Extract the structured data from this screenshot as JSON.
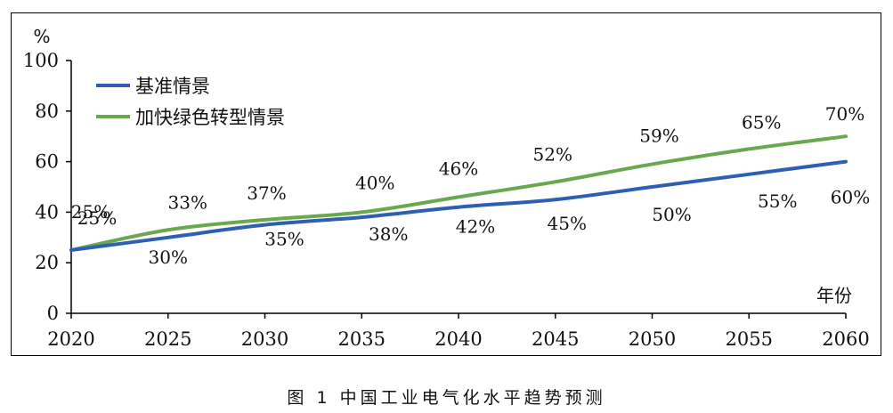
{
  "chart_data": {
    "type": "line",
    "x": [
      2020,
      2025,
      2030,
      2035,
      2040,
      2045,
      2050,
      2055,
      2060
    ],
    "series": [
      {
        "name": "基准情景",
        "color": "#2f5fb3",
        "values": [
          25,
          30,
          35,
          38,
          42,
          45,
          50,
          55,
          60
        ]
      },
      {
        "name": "加快绿色转型情景",
        "color": "#6aa84f",
        "values": [
          25,
          33,
          37,
          40,
          46,
          52,
          59,
          65,
          70
        ]
      }
    ],
    "data_labels": [
      [
        "25%",
        "30%",
        "35%",
        "38%",
        "42%",
        "45%",
        "50%",
        "55%",
        "60%"
      ],
      [
        "25%",
        "33%",
        "37%",
        "40%",
        "46%",
        "52%",
        "59%",
        "65%",
        "70%"
      ]
    ],
    "ylabel": "%",
    "xlabel": "年份",
    "ylim": [
      0,
      100
    ],
    "yticks": [
      0,
      20,
      40,
      60,
      80,
      100
    ],
    "xlim": [
      2020,
      2060
    ],
    "grid": false,
    "legend_position": "top-left"
  },
  "caption": "图 1  中国工业电气化水平趋势预测"
}
